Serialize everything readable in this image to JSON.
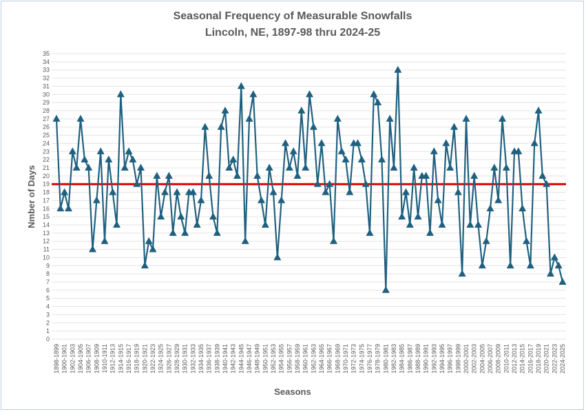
{
  "chart_data": {
    "type": "line",
    "title_lines": [
      "Seasonal Frequency of Measurable Snowfalls",
      "Lincoln, NE, 1897-98 thru 2024-25"
    ],
    "xlabel": "Seasons",
    "ylabel": "Nmber of Days",
    "ylim": [
      0,
      35
    ],
    "y_ticks": [
      0,
      1,
      2,
      3,
      4,
      5,
      6,
      7,
      8,
      9,
      10,
      11,
      12,
      13,
      14,
      15,
      16,
      17,
      18,
      19,
      20,
      21,
      22,
      23,
      24,
      25,
      26,
      27,
      28,
      29,
      30,
      31,
      32,
      33,
      34,
      35
    ],
    "grid": "horizontal",
    "legend": "none",
    "first_season_start_year": 1898,
    "x_tick_labels": [
      "1898-1899",
      "1900-1901",
      "1902-1903",
      "1904-1905",
      "1906-1907",
      "1908-1909",
      "1910-1911",
      "1912-1913",
      "1914-1915",
      "1916-1917",
      "1918-1919",
      "1920-1921",
      "1922-1923",
      "1924-1925",
      "1926-1927",
      "1928-1929",
      "1930-1931",
      "1932-1933",
      "1934-1935",
      "1936-1937",
      "1938-1939",
      "1940-1941",
      "1942-1943",
      "1944-1945",
      "1946-1947",
      "1948-1949",
      "1950-1951",
      "1952-1953",
      "1954-1955",
      "1956-1957",
      "1958-1959",
      "1960-1961",
      "1962-1963",
      "1964-1965",
      "1966-1967",
      "1968-1969",
      "1970-1971",
      "1972-1973",
      "1974-1975",
      "1976-1977",
      "1978-1979",
      "1980-1981",
      "1982-1983",
      "1984-1985",
      "1986-1987",
      "1988-1989",
      "1990-1991",
      "1992-1993",
      "1994-1995",
      "1996-1997",
      "1998-1999",
      "2000-2001",
      "2002-2003",
      "2004-2005",
      "2006-2007",
      "2008-2009",
      "2010-2011",
      "2012-2013",
      "2014-2015",
      "2016-2017",
      "2018-2019",
      "2020-2021",
      "2022-2023",
      "2024-2025"
    ],
    "series": [
      {
        "values": [
          27,
          16,
          18,
          16,
          23,
          21,
          27,
          22,
          21,
          11,
          17,
          23,
          12,
          22,
          18,
          14,
          30,
          21,
          23,
          22,
          19,
          21,
          9,
          12,
          11,
          20,
          15,
          18,
          20,
          13,
          18,
          15,
          13,
          18,
          18,
          14,
          17,
          26,
          20,
          15,
          13,
          26,
          28,
          21,
          22,
          20,
          31,
          12,
          27,
          30,
          20,
          17,
          14,
          21,
          18,
          10,
          17,
          24,
          21,
          23,
          20,
          28,
          21,
          30,
          26,
          19,
          24,
          18,
          19,
          12,
          27,
          23,
          22,
          18,
          24,
          24,
          22,
          19,
          13,
          30,
          29,
          22,
          6,
          27,
          21,
          33,
          15,
          18,
          14,
          21,
          15,
          20,
          20,
          13,
          23,
          17,
          14,
          24,
          21,
          26,
          18,
          8,
          27,
          14,
          20,
          14,
          9,
          12,
          16,
          21,
          17,
          27,
          21,
          9,
          23,
          23,
          16,
          12,
          9,
          24,
          28,
          20,
          19,
          8,
          10,
          9,
          7
        ],
        "color": "#20607f",
        "marker": "triangle"
      }
    ],
    "reference_line": {
      "value": 19,
      "color": "#e00000"
    }
  }
}
